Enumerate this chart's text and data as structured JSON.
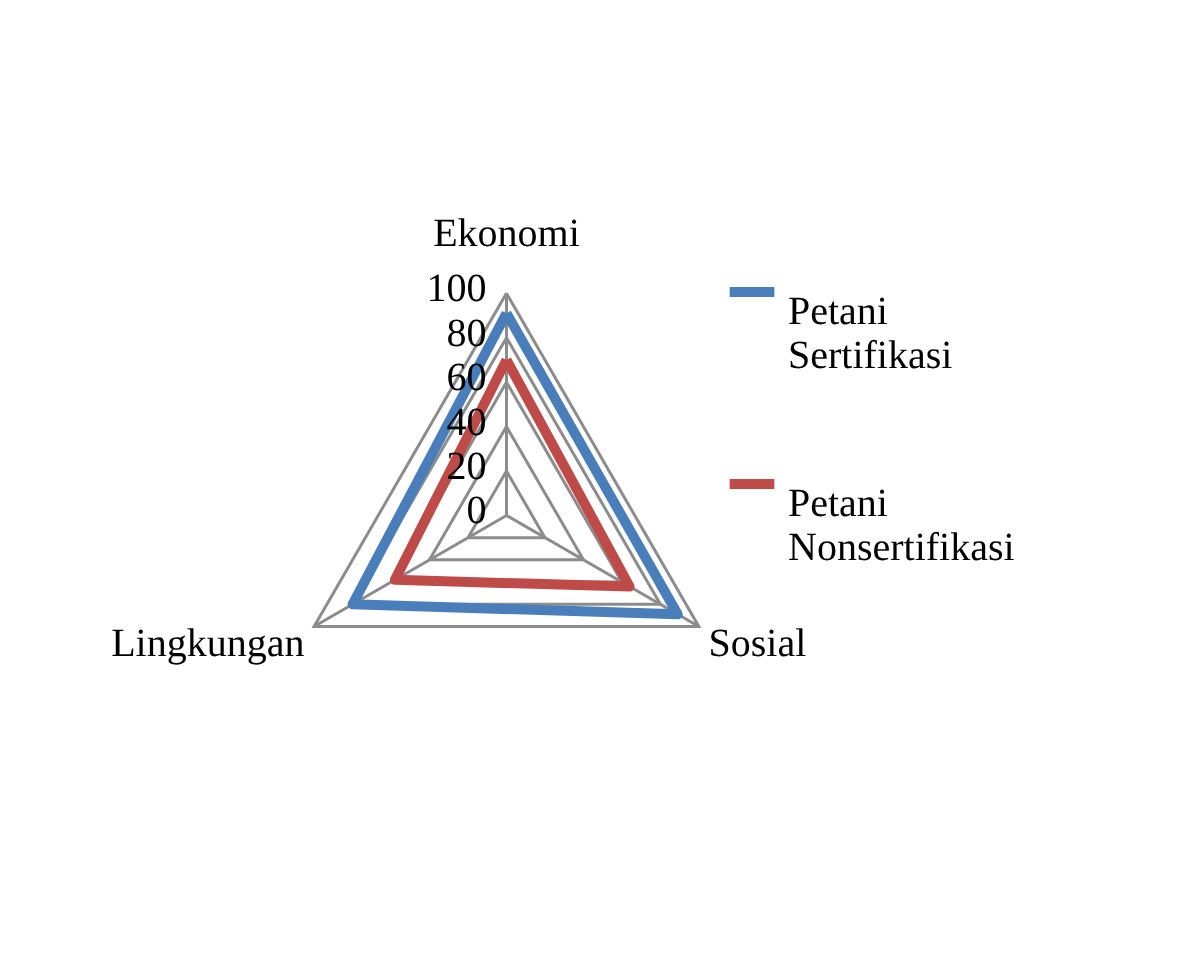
{
  "chart_data": {
    "type": "radar",
    "categories": [
      "Ekonomi",
      "Sosial",
      "Lingkungan"
    ],
    "series": [
      {
        "name": "Petani Sertifikasi",
        "color": "#4a7ebb",
        "values": [
          91,
          89,
          80
        ]
      },
      {
        "name": "Petani Nonsertifikasi",
        "color": "#be4b48",
        "values": [
          70,
          64,
          58
        ]
      }
    ],
    "ylim": [
      0,
      100
    ],
    "yticks": [
      0,
      20,
      40,
      60,
      80,
      100
    ],
    "grid": true,
    "legend": "right"
  }
}
